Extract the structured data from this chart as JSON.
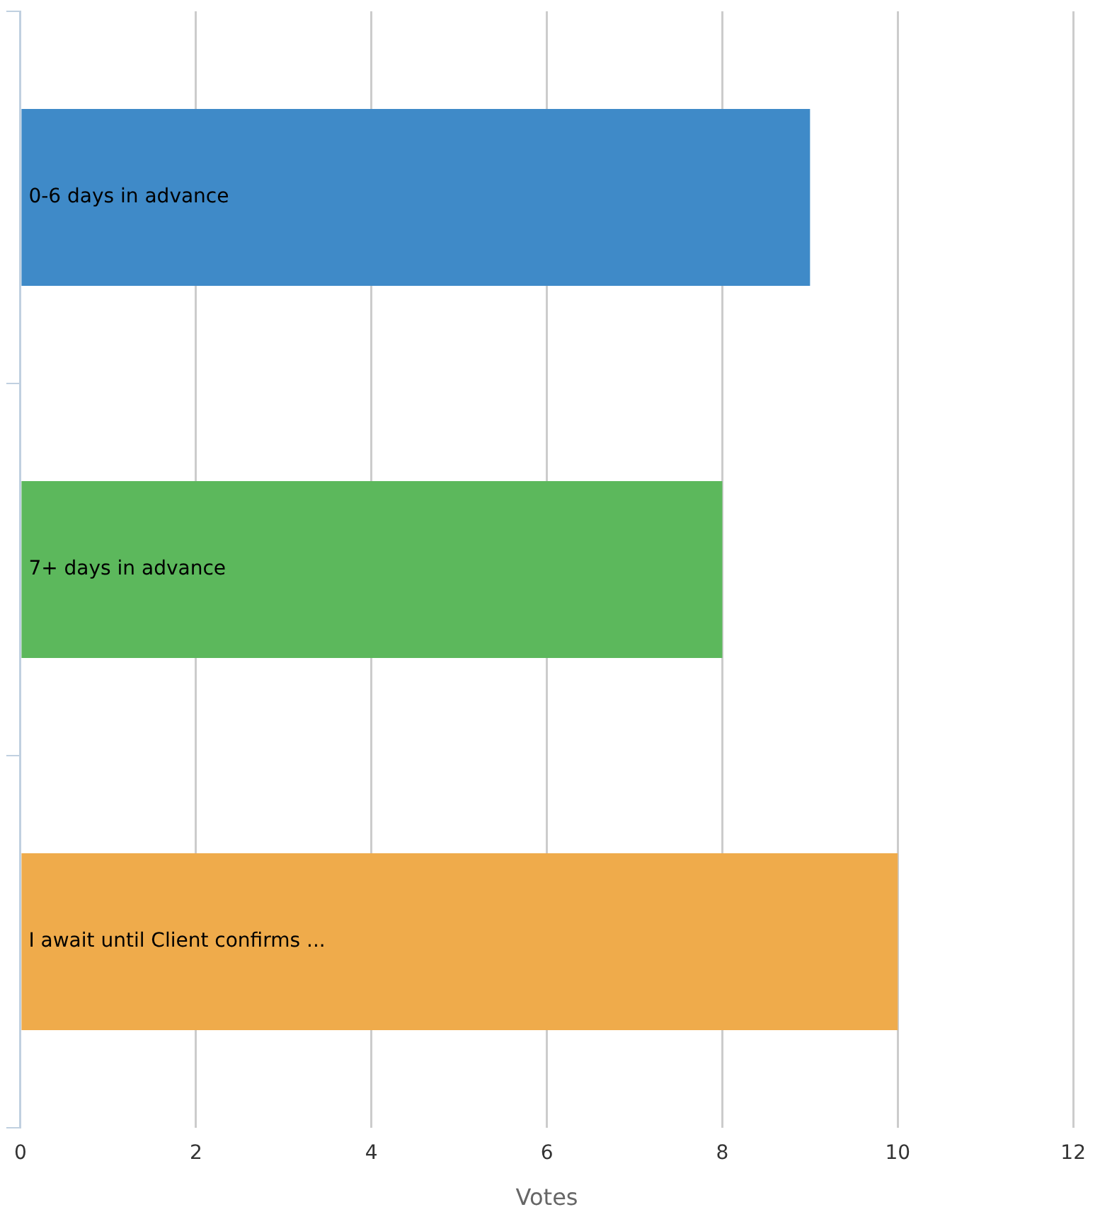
{
  "chart_data": {
    "type": "bar",
    "orientation": "horizontal",
    "xlabel": "Votes",
    "categories": [
      "0-6 days in advance",
      "7+ days in advance",
      "I await until Client confirms ..."
    ],
    "values": [
      9,
      8,
      10
    ],
    "colors": [
      "#3f8ac8",
      "#5cb85c",
      "#efab4b"
    ],
    "xlim": [
      0,
      12
    ],
    "xticks": [
      0,
      2,
      4,
      6,
      8,
      10,
      12
    ],
    "grid": "x",
    "legend": false
  }
}
